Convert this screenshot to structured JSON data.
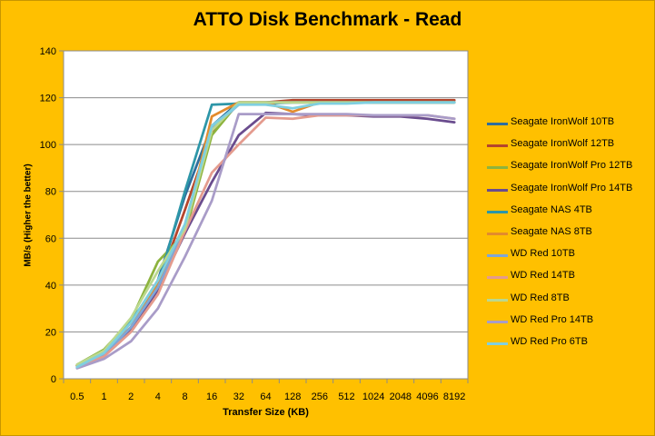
{
  "chart_data": {
    "type": "line",
    "title": "ATTO Disk Benchmark - Read",
    "xlabel": "Transfer Size (KB)",
    "ylabel": "MB/s (Higher the better)",
    "categories": [
      "0.5",
      "1",
      "2",
      "4",
      "8",
      "16",
      "32",
      "64",
      "128",
      "256",
      "512",
      "1024",
      "2048",
      "4096",
      "8192"
    ],
    "ylim": [
      0,
      140
    ],
    "yticks": [
      0,
      20,
      40,
      60,
      80,
      100,
      120,
      140
    ],
    "grid": "horizontal",
    "legend_position": "right",
    "series": [
      {
        "name": "Seagate IronWolf 10TB",
        "color": "#2e6e9e",
        "values": [
          5.5,
          11,
          24,
          42,
          78,
          108,
          118,
          118,
          118.5,
          118,
          118,
          118,
          118,
          118,
          118
        ]
      },
      {
        "name": "Seagate IronWolf 12TB",
        "color": "#b5452c",
        "values": [
          5.5,
          10.5,
          22,
          40,
          72,
          105,
          118,
          118,
          119,
          119,
          119,
          119,
          119,
          119,
          119
        ]
      },
      {
        "name": "Seagate IronWolf Pro 12TB",
        "color": "#8db33e",
        "values": [
          6,
          12.5,
          25,
          50,
          62,
          104,
          118,
          118,
          118,
          118,
          118,
          118,
          118,
          118,
          118
        ]
      },
      {
        "name": "Seagate IronWolf Pro 14TB",
        "color": "#6a4c8e",
        "values": [
          5.5,
          10,
          21,
          38,
          62,
          84,
          104,
          113.5,
          113,
          112.5,
          112.5,
          112,
          112,
          111,
          109.5
        ]
      },
      {
        "name": "Seagate NAS 4TB",
        "color": "#2d96a8",
        "values": [
          5.5,
          11,
          25,
          40,
          80,
          117,
          117.5,
          117.5,
          118,
          118,
          118,
          118,
          118,
          118,
          118
        ]
      },
      {
        "name": "Seagate NAS 8TB",
        "color": "#e38b2c",
        "values": [
          5.5,
          11,
          22,
          41,
          64,
          112,
          118,
          118,
          114,
          118,
          118,
          118,
          118,
          118,
          118
        ]
      },
      {
        "name": "WD Red 10TB",
        "color": "#7ea6d8",
        "values": [
          5,
          10,
          22,
          39,
          64,
          107,
          117,
          118,
          118,
          118,
          118,
          118,
          118,
          118,
          118
        ]
      },
      {
        "name": "WD Red 14TB",
        "color": "#e49b8e",
        "values": [
          5,
          9.5,
          20,
          36,
          63,
          88,
          100,
          111.5,
          111,
          112.5,
          112.5,
          112.5,
          112.5,
          112.5,
          111
        ]
      },
      {
        "name": "WD Red 8TB",
        "color": "#bbd88e",
        "values": [
          6,
          12,
          26,
          46,
          64,
          106,
          118,
          118,
          118,
          118,
          118,
          118,
          118,
          118,
          118
        ]
      },
      {
        "name": "WD Red Pro 14TB",
        "color": "#a99cc8",
        "values": [
          4.5,
          8.5,
          16,
          30,
          52,
          76,
          113,
          113,
          113,
          113,
          113,
          112.5,
          112.5,
          112.5,
          111
        ]
      },
      {
        "name": "WD Red Pro 6TB",
        "color": "#7fcfe0",
        "values": [
          5,
          11,
          24,
          42,
          66,
          108,
          117,
          117,
          115.5,
          117.5,
          117.5,
          118,
          118,
          118,
          118
        ]
      }
    ]
  }
}
